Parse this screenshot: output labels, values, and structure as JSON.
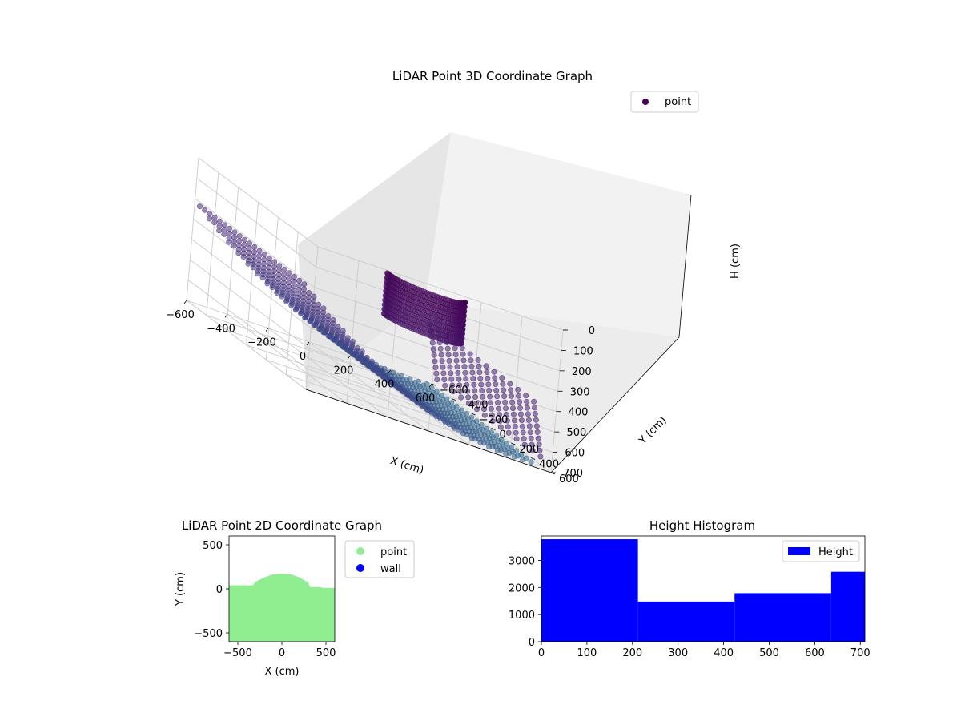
{
  "chart_data": [
    {
      "type": "scatter",
      "projection": "3d",
      "title": "LiDAR Point 3D Coordinate Graph",
      "xlabel": "X (cm)",
      "ylabel": "Y (cm)",
      "zlabel": "H (cm)",
      "xlim": [
        -600,
        600
      ],
      "ylim": [
        -600,
        600
      ],
      "zlim": [
        0,
        700
      ],
      "z_inverted": true,
      "xticks": [
        "−600",
        "−400",
        "−200",
        "0",
        "200",
        "400",
        "600"
      ],
      "yticks": [
        "−600",
        "−400",
        "−200",
        "0",
        "200",
        "400",
        "600"
      ],
      "zticks": [
        "0",
        "100",
        "200",
        "300",
        "400",
        "500",
        "600",
        "700"
      ],
      "colormap": "viridis",
      "grid": true,
      "legend": {
        "position": "top-right",
        "entries": [
          {
            "label": "point",
            "color": "#440154"
          }
        ]
      }
    },
    {
      "type": "scatter",
      "title": "LiDAR Point 2D Coordinate Graph",
      "xlabel": "X (cm)",
      "ylabel": "Y (cm)",
      "xlim": [
        -600,
        600
      ],
      "ylim": [
        -600,
        600
      ],
      "xticks": [
        "−500",
        "0",
        "500"
      ],
      "yticks": [
        "−500",
        "0",
        "500"
      ],
      "series": [
        {
          "name": "point",
          "color": "#90ee90",
          "profile_top": [
            [
              -600,
              40
            ],
            [
              -330,
              40
            ],
            [
              -300,
              80
            ],
            [
              -200,
              130
            ],
            [
              -100,
              165
            ],
            [
              0,
              170
            ],
            [
              100,
              165
            ],
            [
              200,
              130
            ],
            [
              300,
              70
            ],
            [
              320,
              20
            ],
            [
              420,
              20
            ],
            [
              480,
              10
            ],
            [
              600,
              10
            ]
          ],
          "bottom": -600
        },
        {
          "name": "wall",
          "color": "#0000ff"
        }
      ],
      "legend": {
        "position": "outside-right"
      }
    },
    {
      "type": "histogram",
      "title": "Height Histogram",
      "xlim": [
        0,
        710
      ],
      "ylim": [
        0,
        3900
      ],
      "xticks": [
        "0",
        "100",
        "200",
        "300",
        "400",
        "500",
        "600",
        "700"
      ],
      "yticks": [
        "0",
        "1000",
        "2000",
        "3000"
      ],
      "bins": [
        [
          0,
          212
        ],
        [
          212,
          424
        ],
        [
          424,
          636
        ],
        [
          636,
          710
        ]
      ],
      "values": [
        3780,
        1480,
        1790,
        2580
      ],
      "series": [
        {
          "name": "Height",
          "color": "#0000ff"
        }
      ],
      "legend": {
        "position": "top-right"
      }
    }
  ]
}
